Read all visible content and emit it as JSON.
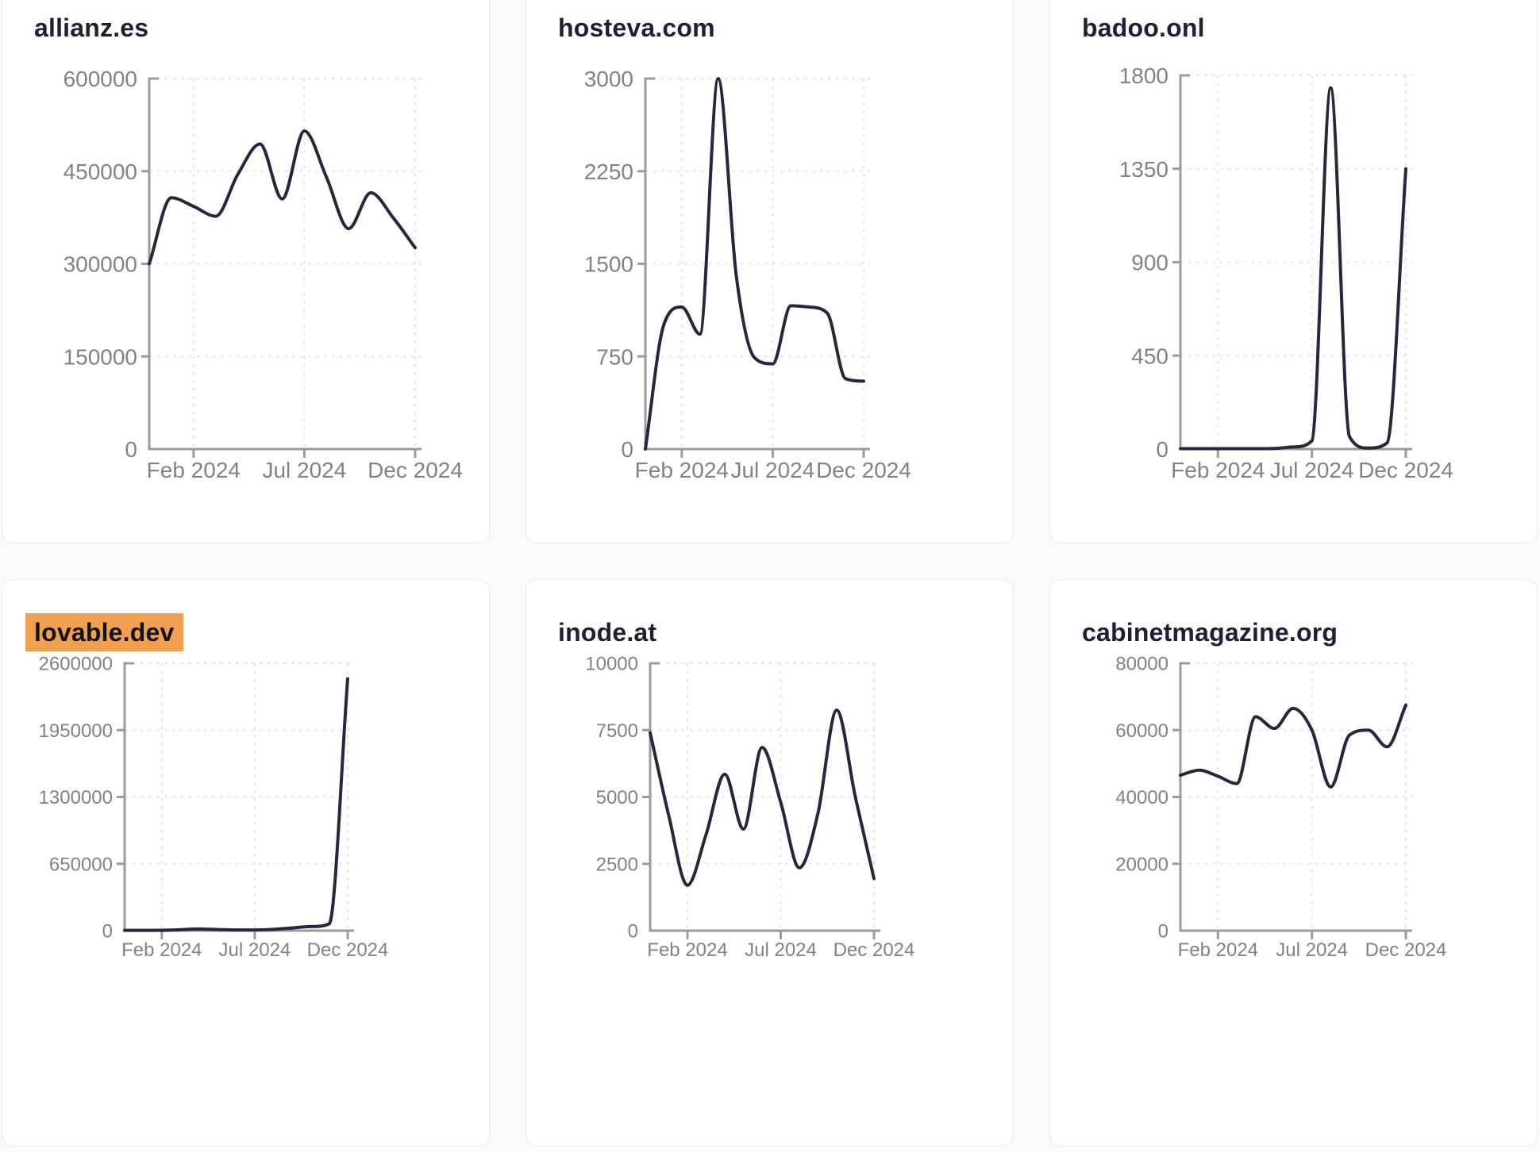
{
  "page": {
    "background": "#fbfbfc",
    "card_background": "#ffffff",
    "card_border_color": "#e7e9ee",
    "line_color": "#212840",
    "title_color": "#1b2138",
    "axis_color": "#9b9b9b",
    "tick_label_color": "#828282",
    "grid_color": "#e4e4e8",
    "highlight_color": "#f0a04e"
  },
  "chart_data": [
    {
      "type": "line",
      "title": "allianz.es",
      "title_highlighted": false,
      "x": [
        "Dec 2023",
        "Jan 2024",
        "Feb 2024",
        "Mar 2024",
        "Apr 2024",
        "May 2024",
        "Jun 2024",
        "Jul 2024",
        "Aug 2024",
        "Sep 2024",
        "Oct 2024",
        "Nov 2024",
        "Dec 2024"
      ],
      "values": [
        300000,
        407000,
        393000,
        377000,
        445000,
        494000,
        405000,
        515000,
        440000,
        357000,
        415000,
        375000,
        326000
      ],
      "y_ticks": [
        0,
        150000,
        300000,
        450000,
        600000
      ],
      "y_tick_labels": [
        "0",
        "150000",
        "300000",
        "450000",
        "600000"
      ],
      "x_tick_labels": [
        "Feb 2024",
        "Jul 2024",
        "Dec 2024"
      ],
      "ylim": [
        0,
        600000
      ],
      "grid": "dashed"
    },
    {
      "type": "line",
      "title": "hosteva.com",
      "title_highlighted": false,
      "x": [
        "Dec 2023",
        "Jan 2024",
        "Feb 2024",
        "Mar 2024",
        "Apr 2024",
        "May 2024",
        "Jun 2024",
        "Jul 2024",
        "Aug 2024",
        "Sep 2024",
        "Oct 2024",
        "Nov 2024",
        "Dec 2024"
      ],
      "values": [
        0,
        1000,
        1150,
        930,
        3000,
        1400,
        740,
        690,
        1160,
        1150,
        1100,
        570,
        550
      ],
      "y_ticks": [
        0,
        750,
        1500,
        2250,
        3000
      ],
      "y_tick_labels": [
        "0",
        "750",
        "1500",
        "2250",
        "3000"
      ],
      "x_tick_labels": [
        "Feb 2024",
        "Jul 2024",
        "Dec 2024"
      ],
      "ylim": [
        0,
        3000
      ],
      "grid": "dashed"
    },
    {
      "type": "line",
      "title": "badoo.onl",
      "title_highlighted": false,
      "x": [
        "Dec 2023",
        "Jan 2024",
        "Feb 2024",
        "Mar 2024",
        "Apr 2024",
        "May 2024",
        "Jun 2024",
        "Jul 2024",
        "Aug 2024",
        "Sep 2024",
        "Oct 2024",
        "Nov 2024",
        "Dec 2024"
      ],
      "values": [
        2,
        2,
        2,
        2,
        2,
        3,
        10,
        40,
        1740,
        60,
        5,
        30,
        1350
      ],
      "y_ticks": [
        0,
        450,
        900,
        1350,
        1800
      ],
      "y_tick_labels": [
        "0",
        "450",
        "900",
        "1350",
        "1800"
      ],
      "x_tick_labels": [
        "Feb 2024",
        "Jul 2024",
        "Dec 2024"
      ],
      "ylim": [
        0,
        1800
      ],
      "grid": "dashed"
    },
    {
      "type": "line",
      "title": "lovable.dev",
      "title_highlighted": true,
      "x": [
        "Dec 2023",
        "Jan 2024",
        "Feb 2024",
        "Mar 2024",
        "Apr 2024",
        "May 2024",
        "Jun 2024",
        "Jul 2024",
        "Aug 2024",
        "Sep 2024",
        "Oct 2024",
        "Nov 2024",
        "Dec 2024"
      ],
      "values": [
        3000,
        3000,
        4000,
        9000,
        16000,
        11000,
        7000,
        7000,
        13000,
        26000,
        40000,
        65000,
        2450000
      ],
      "y_ticks": [
        0,
        650000,
        1300000,
        1950000,
        2600000
      ],
      "y_tick_labels": [
        "0",
        "650000",
        "1300000",
        "1950000",
        "2600000"
      ],
      "x_tick_labels": [
        "Feb 2024",
        "Jul 2024",
        "Dec 2024"
      ],
      "ylim": [
        0,
        2600000
      ],
      "grid": "dashed"
    },
    {
      "type": "line",
      "title": "inode.at",
      "title_highlighted": false,
      "x": [
        "Dec 2023",
        "Jan 2024",
        "Feb 2024",
        "Mar 2024",
        "Apr 2024",
        "May 2024",
        "Jun 2024",
        "Jul 2024",
        "Aug 2024",
        "Sep 2024",
        "Oct 2024",
        "Nov 2024",
        "Dec 2024"
      ],
      "values": [
        7400,
        4300,
        1700,
        3600,
        5850,
        3800,
        6850,
        4800,
        2350,
        4400,
        8250,
        5000,
        1950
      ],
      "y_ticks": [
        0,
        2500,
        5000,
        7500,
        10000
      ],
      "y_tick_labels": [
        "0",
        "2500",
        "5000",
        "7500",
        "10000"
      ],
      "x_tick_labels": [
        "Feb 2024",
        "Jul 2024",
        "Dec 2024"
      ],
      "ylim": [
        0,
        10000
      ],
      "grid": "dashed"
    },
    {
      "type": "line",
      "title": "cabinetmagazine.org",
      "title_highlighted": false,
      "x": [
        "Dec 2023",
        "Jan 2024",
        "Feb 2024",
        "Mar 2024",
        "Apr 2024",
        "May 2024",
        "Jun 2024",
        "Jul 2024",
        "Aug 2024",
        "Sep 2024",
        "Oct 2024",
        "Nov 2024",
        "Dec 2024"
      ],
      "values": [
        46500,
        48000,
        46200,
        44000,
        64000,
        60500,
        66500,
        60000,
        43000,
        58500,
        60000,
        55000,
        67500
      ],
      "y_ticks": [
        0,
        20000,
        40000,
        60000,
        80000
      ],
      "y_tick_labels": [
        "0",
        "20000",
        "40000",
        "60000",
        "80000"
      ],
      "x_tick_labels": [
        "Feb 2024",
        "Jul 2024",
        "Dec 2024"
      ],
      "ylim": [
        0,
        80000
      ],
      "grid": "dashed"
    }
  ]
}
